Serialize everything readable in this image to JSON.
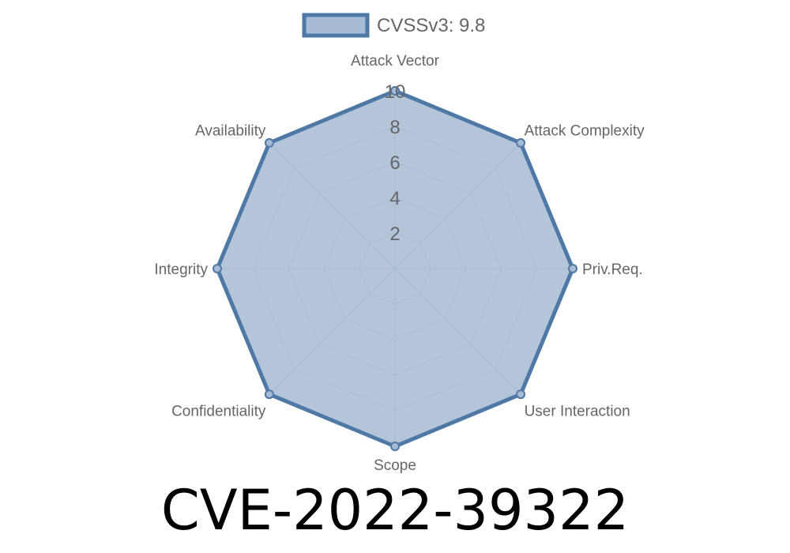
{
  "chart_data": {
    "type": "radar",
    "legend": {
      "label": "CVSSv3: 9.8",
      "placement": "top"
    },
    "axes": [
      "Attack Vector",
      "Attack Complexity",
      "Priv.Req.",
      "User Interaction",
      "Scope",
      "Confidentiality",
      "Integrity",
      "Availability"
    ],
    "series": [
      {
        "name": "CVSSv3: 9.8",
        "values": [
          10,
          10,
          10,
          10,
          10,
          10,
          10,
          10
        ]
      }
    ],
    "ticks": [
      "2",
      "4",
      "6",
      "8",
      "10"
    ],
    "rlim": [
      0,
      10
    ],
    "grid": true,
    "colors": {
      "stroke": "#4e79a7",
      "fill": "#a7bbd4",
      "grid": "#c8ccd2"
    }
  },
  "title": "CVE-2022-39322"
}
